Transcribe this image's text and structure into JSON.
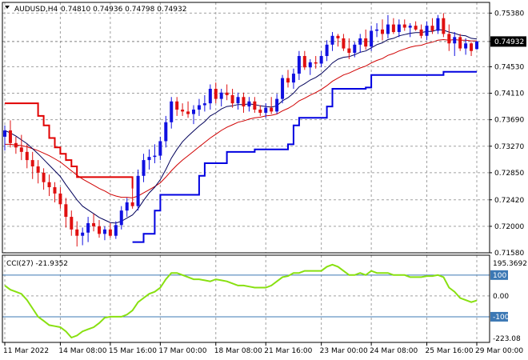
{
  "header": {
    "symbol": "AUDUSD,H4",
    "ohlc": "0.74810 0.74936 0.74798 0.74932",
    "current_price": "0.74932"
  },
  "indicator": {
    "label": "CCI(27) -21.9352",
    "max_label": "195.3692",
    "min_label": "-223.08",
    "levels": [
      "100",
      "0.00",
      "-100"
    ]
  },
  "colors": {
    "bull": "#1010e0",
    "bear": "#e01010",
    "ema_fast": "#00005a",
    "ema_slow": "#d00000",
    "channel_up": "#0000e0",
    "channel_down": "#e00000",
    "cci": "#88e010",
    "grid": "#a0a0a0"
  },
  "chart_data": [
    {
      "type": "candlestick",
      "title": "AUDUSD,H4",
      "x_ticks": [
        "11 Mar 2022",
        "14 Mar 08:00",
        "15 Mar 16:00",
        "17 Mar 00:00",
        "18 Mar 08:00",
        "21 Mar 16:00",
        "23 Mar 00:00",
        "24 Mar 08:00",
        "25 Mar 16:00",
        "29 Mar 00:00"
      ],
      "y_ticks": [
        0.7158,
        0.72,
        0.7242,
        0.7285,
        0.7327,
        0.7369,
        0.7411,
        0.7453,
        0.7493,
        0.7538
      ],
      "ylim": [
        0.7158,
        0.7555
      ],
      "candles": [
        {
          "o": 0.7342,
          "h": 0.736,
          "l": 0.732,
          "c": 0.7352
        },
        {
          "o": 0.7352,
          "h": 0.7368,
          "l": 0.7325,
          "c": 0.7332
        },
        {
          "o": 0.7332,
          "h": 0.7342,
          "l": 0.7315,
          "c": 0.7325
        },
        {
          "o": 0.7325,
          "h": 0.7345,
          "l": 0.7305,
          "c": 0.7318
        },
        {
          "o": 0.7318,
          "h": 0.733,
          "l": 0.7292,
          "c": 0.7305
        },
        {
          "o": 0.7305,
          "h": 0.7318,
          "l": 0.7275,
          "c": 0.7295
        },
        {
          "o": 0.7295,
          "h": 0.7305,
          "l": 0.7268,
          "c": 0.7285
        },
        {
          "o": 0.7285,
          "h": 0.7292,
          "l": 0.7258,
          "c": 0.727
        },
        {
          "o": 0.727,
          "h": 0.7282,
          "l": 0.7248,
          "c": 0.7262
        },
        {
          "o": 0.7262,
          "h": 0.727,
          "l": 0.7238,
          "c": 0.7252
        },
        {
          "o": 0.7252,
          "h": 0.7262,
          "l": 0.7228,
          "c": 0.7235
        },
        {
          "o": 0.7235,
          "h": 0.7245,
          "l": 0.7198,
          "c": 0.7215
        },
        {
          "o": 0.7215,
          "h": 0.7225,
          "l": 0.7185,
          "c": 0.7195
        },
        {
          "o": 0.7195,
          "h": 0.7208,
          "l": 0.7168,
          "c": 0.7185
        },
        {
          "o": 0.7185,
          "h": 0.7198,
          "l": 0.717,
          "c": 0.719
        },
        {
          "o": 0.719,
          "h": 0.7215,
          "l": 0.7175,
          "c": 0.7205
        },
        {
          "o": 0.7205,
          "h": 0.722,
          "l": 0.7192,
          "c": 0.72
        },
        {
          "o": 0.72,
          "h": 0.721,
          "l": 0.7182,
          "c": 0.7188
        },
        {
          "o": 0.7188,
          "h": 0.72,
          "l": 0.7178,
          "c": 0.7195
        },
        {
          "o": 0.7195,
          "h": 0.7205,
          "l": 0.7182,
          "c": 0.7185
        },
        {
          "o": 0.7185,
          "h": 0.7208,
          "l": 0.718,
          "c": 0.7202
        },
        {
          "o": 0.7202,
          "h": 0.7232,
          "l": 0.7195,
          "c": 0.7225
        },
        {
          "o": 0.7225,
          "h": 0.7245,
          "l": 0.7215,
          "c": 0.7238
        },
        {
          "o": 0.7238,
          "h": 0.7262,
          "l": 0.7228,
          "c": 0.7232
        },
        {
          "o": 0.7232,
          "h": 0.729,
          "l": 0.7225,
          "c": 0.728
        },
        {
          "o": 0.728,
          "h": 0.7315,
          "l": 0.727,
          "c": 0.7305
        },
        {
          "o": 0.7305,
          "h": 0.7322,
          "l": 0.729,
          "c": 0.731
        },
        {
          "o": 0.731,
          "h": 0.733,
          "l": 0.73,
          "c": 0.7312
        },
        {
          "o": 0.7312,
          "h": 0.7342,
          "l": 0.7305,
          "c": 0.7335
        },
        {
          "o": 0.7335,
          "h": 0.7375,
          "l": 0.7325,
          "c": 0.7365
        },
        {
          "o": 0.7365,
          "h": 0.7405,
          "l": 0.7355,
          "c": 0.7398
        },
        {
          "o": 0.7398,
          "h": 0.7405,
          "l": 0.7375,
          "c": 0.7385
        },
        {
          "o": 0.7385,
          "h": 0.7395,
          "l": 0.7375,
          "c": 0.7382
        },
        {
          "o": 0.7382,
          "h": 0.7398,
          "l": 0.7372,
          "c": 0.7378
        },
        {
          "o": 0.7378,
          "h": 0.7392,
          "l": 0.7362,
          "c": 0.7385
        },
        {
          "o": 0.7385,
          "h": 0.7402,
          "l": 0.7375,
          "c": 0.7392
        },
        {
          "o": 0.7392,
          "h": 0.7408,
          "l": 0.7382,
          "c": 0.7395
        },
        {
          "o": 0.7395,
          "h": 0.7425,
          "l": 0.7385,
          "c": 0.7418
        },
        {
          "o": 0.7418,
          "h": 0.7428,
          "l": 0.7395,
          "c": 0.7402
        },
        {
          "o": 0.7402,
          "h": 0.7418,
          "l": 0.739,
          "c": 0.7412
        },
        {
          "o": 0.7412,
          "h": 0.7425,
          "l": 0.74,
          "c": 0.7408
        },
        {
          "o": 0.7408,
          "h": 0.7418,
          "l": 0.7388,
          "c": 0.7395
        },
        {
          "o": 0.7395,
          "h": 0.7412,
          "l": 0.7385,
          "c": 0.7405
        },
        {
          "o": 0.7405,
          "h": 0.7412,
          "l": 0.738,
          "c": 0.739
        },
        {
          "o": 0.739,
          "h": 0.7405,
          "l": 0.7382,
          "c": 0.7398
        },
        {
          "o": 0.7398,
          "h": 0.7405,
          "l": 0.738,
          "c": 0.7385
        },
        {
          "o": 0.7385,
          "h": 0.7392,
          "l": 0.7375,
          "c": 0.738
        },
        {
          "o": 0.738,
          "h": 0.7395,
          "l": 0.7372,
          "c": 0.7388
        },
        {
          "o": 0.7388,
          "h": 0.7405,
          "l": 0.7378,
          "c": 0.7382
        },
        {
          "o": 0.7382,
          "h": 0.741,
          "l": 0.7378,
          "c": 0.7402
        },
        {
          "o": 0.7402,
          "h": 0.744,
          "l": 0.7395,
          "c": 0.7435
        },
        {
          "o": 0.7435,
          "h": 0.7448,
          "l": 0.742,
          "c": 0.7428
        },
        {
          "o": 0.7428,
          "h": 0.745,
          "l": 0.7418,
          "c": 0.7442
        },
        {
          "o": 0.7442,
          "h": 0.7478,
          "l": 0.7432,
          "c": 0.747
        },
        {
          "o": 0.747,
          "h": 0.7478,
          "l": 0.7448,
          "c": 0.7452
        },
        {
          "o": 0.7452,
          "h": 0.7465,
          "l": 0.744,
          "c": 0.746
        },
        {
          "o": 0.746,
          "h": 0.747,
          "l": 0.745,
          "c": 0.7458
        },
        {
          "o": 0.7458,
          "h": 0.7478,
          "l": 0.7452,
          "c": 0.747
        },
        {
          "o": 0.747,
          "h": 0.7495,
          "l": 0.7462,
          "c": 0.7488
        },
        {
          "o": 0.7488,
          "h": 0.7508,
          "l": 0.7478,
          "c": 0.7502
        },
        {
          "o": 0.7502,
          "h": 0.7505,
          "l": 0.7485,
          "c": 0.7498
        },
        {
          "o": 0.7498,
          "h": 0.7505,
          "l": 0.7478,
          "c": 0.7482
        },
        {
          "o": 0.7482,
          "h": 0.7498,
          "l": 0.7465,
          "c": 0.7475
        },
        {
          "o": 0.7475,
          "h": 0.7492,
          "l": 0.7468,
          "c": 0.7488
        },
        {
          "o": 0.7488,
          "h": 0.7505,
          "l": 0.7475,
          "c": 0.7498
        },
        {
          "o": 0.7498,
          "h": 0.7512,
          "l": 0.748,
          "c": 0.7485
        },
        {
          "o": 0.7485,
          "h": 0.7518,
          "l": 0.7478,
          "c": 0.751
        },
        {
          "o": 0.751,
          "h": 0.7522,
          "l": 0.75,
          "c": 0.7512
        },
        {
          "o": 0.7512,
          "h": 0.7528,
          "l": 0.7495,
          "c": 0.7505
        },
        {
          "o": 0.7505,
          "h": 0.7535,
          "l": 0.7498,
          "c": 0.752
        },
        {
          "o": 0.752,
          "h": 0.753,
          "l": 0.7505,
          "c": 0.7508
        },
        {
          "o": 0.7508,
          "h": 0.7528,
          "l": 0.75,
          "c": 0.752
        },
        {
          "o": 0.752,
          "h": 0.7528,
          "l": 0.751,
          "c": 0.7515
        },
        {
          "o": 0.7515,
          "h": 0.7522,
          "l": 0.75,
          "c": 0.7518
        },
        {
          "o": 0.7518,
          "h": 0.7525,
          "l": 0.751,
          "c": 0.7512
        },
        {
          "o": 0.7512,
          "h": 0.752,
          "l": 0.7498,
          "c": 0.7502
        },
        {
          "o": 0.7502,
          "h": 0.7525,
          "l": 0.7495,
          "c": 0.7518
        },
        {
          "o": 0.7518,
          "h": 0.753,
          "l": 0.7505,
          "c": 0.751
        },
        {
          "o": 0.751,
          "h": 0.7535,
          "l": 0.7505,
          "c": 0.753
        },
        {
          "o": 0.753,
          "h": 0.7538,
          "l": 0.75,
          "c": 0.7505
        },
        {
          "o": 0.7505,
          "h": 0.752,
          "l": 0.7478,
          "c": 0.749
        },
        {
          "o": 0.749,
          "h": 0.7508,
          "l": 0.747,
          "c": 0.75
        },
        {
          "o": 0.75,
          "h": 0.7505,
          "l": 0.7478,
          "c": 0.7482
        },
        {
          "o": 0.7482,
          "h": 0.7498,
          "l": 0.7472,
          "c": 0.749
        },
        {
          "o": 0.749,
          "h": 0.7492,
          "l": 0.747,
          "c": 0.7478
        },
        {
          "o": 0.7481,
          "h": 0.7494,
          "l": 0.748,
          "c": 0.7493
        }
      ],
      "ema_fast": [
        0.7352,
        0.7348,
        0.7343,
        0.7337,
        0.7331,
        0.7323,
        0.7315,
        0.7306,
        0.7297,
        0.7288,
        0.7279,
        0.7266,
        0.7254,
        0.7242,
        0.7232,
        0.7226,
        0.722,
        0.7214,
        0.721,
        0.7206,
        0.7205,
        0.7208,
        0.7213,
        0.7218,
        0.7228,
        0.7241,
        0.7253,
        0.7262,
        0.7274,
        0.729,
        0.7308,
        0.7322,
        0.7334,
        0.7343,
        0.7351,
        0.7359,
        0.7366,
        0.7375,
        0.738,
        0.7386,
        0.739,
        0.7391,
        0.7393,
        0.7393,
        0.7394,
        0.7393,
        0.7391,
        0.739,
        0.7389,
        0.7391,
        0.7399,
        0.7404,
        0.7411,
        0.7421,
        0.7426,
        0.7432,
        0.7436,
        0.7442,
        0.745,
        0.7459,
        0.7465,
        0.7468,
        0.7469,
        0.7472,
        0.7476,
        0.7478,
        0.7483,
        0.7488,
        0.7491,
        0.7496,
        0.7498,
        0.7502,
        0.7504,
        0.7506,
        0.7507,
        0.7507,
        0.7509,
        0.7509,
        0.7512,
        0.7511,
        0.7508,
        0.7506,
        0.7503,
        0.7502,
        0.7498,
        0.7497
      ],
      "ema_slow": [
        0.733,
        0.733,
        0.7329,
        0.7328,
        0.7326,
        0.7323,
        0.732,
        0.7316,
        0.7312,
        0.7307,
        0.7302,
        0.7295,
        0.7288,
        0.7281,
        0.7275,
        0.727,
        0.7265,
        0.726,
        0.7256,
        0.7251,
        0.7248,
        0.7246,
        0.7246,
        0.7245,
        0.7248,
        0.7253,
        0.7258,
        0.7263,
        0.7269,
        0.7278,
        0.7288,
        0.7297,
        0.7305,
        0.7312,
        0.7319,
        0.7326,
        0.7333,
        0.734,
        0.7346,
        0.7352,
        0.7357,
        0.7361,
        0.7365,
        0.7367,
        0.737,
        0.7372,
        0.7373,
        0.7375,
        0.7376,
        0.7378,
        0.7383,
        0.7387,
        0.7392,
        0.7399,
        0.7403,
        0.7408,
        0.7412,
        0.7417,
        0.7423,
        0.743,
        0.7435,
        0.744,
        0.7443,
        0.7447,
        0.7451,
        0.7454,
        0.7459,
        0.7463,
        0.7466,
        0.7471,
        0.7474,
        0.7478,
        0.7481,
        0.7484,
        0.7486,
        0.7487,
        0.749,
        0.7492,
        0.7495,
        0.7496,
        0.7495,
        0.7496,
        0.7495,
        0.7495,
        0.7494,
        0.7494
      ],
      "channel_up": [
        null,
        null,
        null,
        null,
        null,
        null,
        null,
        null,
        null,
        null,
        null,
        null,
        null,
        null,
        null,
        null,
        null,
        null,
        null,
        null,
        null,
        null,
        null,
        0.7175,
        0.7175,
        0.7188,
        0.7188,
        0.7225,
        0.725,
        0.725,
        0.725,
        0.725,
        0.725,
        0.725,
        0.725,
        0.728,
        0.73,
        0.73,
        0.73,
        0.73,
        0.7318,
        0.7318,
        0.7318,
        0.7318,
        0.7318,
        0.7322,
        0.7322,
        0.7322,
        0.7322,
        0.7322,
        0.7322,
        0.733,
        0.736,
        0.7372,
        0.7372,
        0.7372,
        0.7372,
        0.7372,
        0.739,
        0.7418,
        0.7418,
        0.7418,
        0.7418,
        0.7418,
        0.7418,
        0.742,
        0.744,
        0.744,
        0.744,
        0.744,
        0.744,
        0.744,
        0.744,
        0.744,
        0.744,
        0.744,
        0.744,
        0.744,
        0.744,
        0.7445,
        0.7445,
        0.7445,
        0.7445,
        0.7445,
        0.7445,
        0.7445
      ],
      "channel_down": [
        0.7395,
        0.7395,
        0.7395,
        0.7395,
        0.7395,
        0.7395,
        0.7375,
        0.736,
        0.734,
        0.7325,
        0.7315,
        0.7305,
        0.7295,
        0.7278,
        0.7278,
        0.7278,
        0.7278,
        0.7278,
        0.7278,
        0.7278,
        0.7278,
        0.7278,
        0.7278,
        0.726,
        null,
        null,
        null,
        null,
        null,
        null,
        null,
        null,
        null,
        null,
        null,
        null,
        null,
        null,
        null,
        null,
        null,
        null,
        null,
        null,
        null,
        null,
        null,
        null,
        null,
        null,
        null,
        null,
        null,
        null,
        null,
        null,
        null,
        null,
        null,
        null,
        null,
        null,
        null,
        null,
        null,
        null,
        null,
        null,
        null,
        null,
        null,
        null,
        null,
        null,
        null,
        null,
        null,
        null,
        null,
        null,
        null,
        null,
        null,
        null,
        null,
        null
      ]
    },
    {
      "type": "line",
      "title": "CCI(27) -21.9352",
      "ylim": [
        -223.08,
        195.3692
      ],
      "levels": [
        100,
        0,
        -100
      ],
      "series": [
        {
          "name": "CCI(27)",
          "values": [
            50,
            30,
            20,
            10,
            -20,
            -60,
            -100,
            -120,
            -140,
            -145,
            -150,
            -170,
            -200,
            -190,
            -170,
            -160,
            -150,
            -130,
            -105,
            -100,
            -100,
            -100,
            -90,
            -70,
            -30,
            -10,
            10,
            20,
            40,
            80,
            110,
            110,
            100,
            90,
            80,
            80,
            75,
            70,
            80,
            75,
            70,
            60,
            50,
            50,
            45,
            40,
            40,
            40,
            50,
            70,
            90,
            95,
            110,
            110,
            120,
            120,
            120,
            120,
            140,
            150,
            140,
            120,
            100,
            100,
            110,
            100,
            120,
            110,
            110,
            110,
            100,
            100,
            100,
            90,
            90,
            90,
            95,
            95,
            100,
            90,
            40,
            20,
            -10,
            -20,
            -30,
            -21.9
          ]
        }
      ]
    }
  ]
}
